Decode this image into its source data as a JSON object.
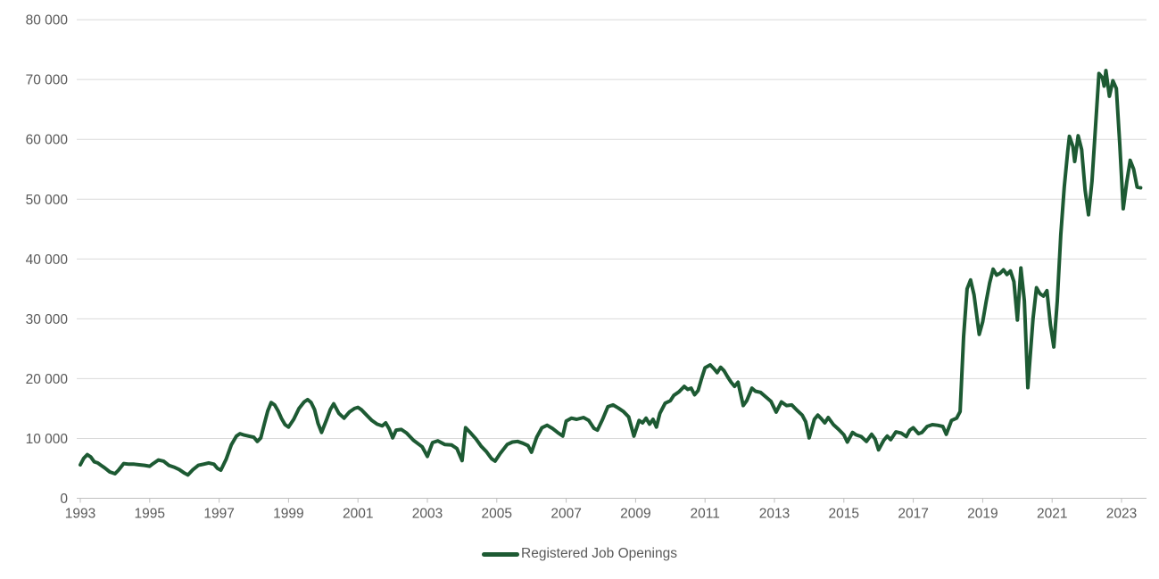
{
  "colors": {
    "line": "#1d5a33",
    "axis_text": "#595959",
    "gridline": "#d9d9d9",
    "axis_line": "#bfbfbf",
    "background": "#ffffff"
  },
  "legend": {
    "label": "Registered Job Openings"
  },
  "chart_data": {
    "type": "line",
    "title": "",
    "xlabel": "",
    "ylabel": "",
    "grid": "horizontal",
    "legend_position": "bottom-center",
    "x_axis": {
      "ticks": [
        1993,
        1995,
        1997,
        1999,
        2001,
        2003,
        2005,
        2007,
        2009,
        2011,
        2013,
        2015,
        2017,
        2019,
        2021,
        2023
      ],
      "tick_labels": [
        "1993",
        "1995",
        "1997",
        "1999",
        "2001",
        "2003",
        "2005",
        "2007",
        "2009",
        "2011",
        "2013",
        "2015",
        "2017",
        "2019",
        "2021",
        "2023"
      ],
      "range": [
        1993,
        2023.7
      ]
    },
    "y_axis": {
      "ticks": [
        0,
        10000,
        20000,
        30000,
        40000,
        50000,
        60000,
        70000,
        80000
      ],
      "tick_labels": [
        "0",
        "10 000",
        "20 000",
        "30 000",
        "40 000",
        "50 000",
        "60 000",
        "70 000",
        "80 000"
      ],
      "range": [
        0,
        80000
      ]
    },
    "series": [
      {
        "name": "Registered Job Openings",
        "color": "#1d5a33",
        "points": [
          [
            1993.0,
            5600
          ],
          [
            1993.1,
            6700
          ],
          [
            1993.2,
            7300
          ],
          [
            1993.3,
            6900
          ],
          [
            1993.4,
            6100
          ],
          [
            1993.5,
            5900
          ],
          [
            1993.6,
            5500
          ],
          [
            1993.7,
            5100
          ],
          [
            1993.85,
            4400
          ],
          [
            1994.0,
            4100
          ],
          [
            1994.1,
            4700
          ],
          [
            1994.25,
            5800
          ],
          [
            1994.4,
            5700
          ],
          [
            1994.55,
            5700
          ],
          [
            1994.7,
            5600
          ],
          [
            1994.85,
            5500
          ],
          [
            1995.0,
            5350
          ],
          [
            1995.1,
            5800
          ],
          [
            1995.25,
            6400
          ],
          [
            1995.4,
            6200
          ],
          [
            1995.55,
            5500
          ],
          [
            1995.7,
            5200
          ],
          [
            1995.85,
            4800
          ],
          [
            1996.0,
            4200
          ],
          [
            1996.1,
            3900
          ],
          [
            1996.25,
            4800
          ],
          [
            1996.4,
            5500
          ],
          [
            1996.55,
            5700
          ],
          [
            1996.7,
            5900
          ],
          [
            1996.85,
            5700
          ],
          [
            1996.95,
            5000
          ],
          [
            1997.05,
            4700
          ],
          [
            1997.2,
            6500
          ],
          [
            1997.35,
            8900
          ],
          [
            1997.5,
            10400
          ],
          [
            1997.6,
            10800
          ],
          [
            1997.7,
            10600
          ],
          [
            1997.85,
            10400
          ],
          [
            1998.0,
            10200
          ],
          [
            1998.1,
            9500
          ],
          [
            1998.2,
            10100
          ],
          [
            1998.3,
            12400
          ],
          [
            1998.4,
            14600
          ],
          [
            1998.5,
            16000
          ],
          [
            1998.6,
            15600
          ],
          [
            1998.7,
            14600
          ],
          [
            1998.8,
            13300
          ],
          [
            1998.9,
            12300
          ],
          [
            1999.0,
            11900
          ],
          [
            1999.15,
            13200
          ],
          [
            1999.3,
            15000
          ],
          [
            1999.45,
            16100
          ],
          [
            1999.55,
            16500
          ],
          [
            1999.65,
            16000
          ],
          [
            1999.75,
            14800
          ],
          [
            1999.85,
            12500
          ],
          [
            1999.95,
            11000
          ],
          [
            2000.1,
            13200
          ],
          [
            2000.2,
            14800
          ],
          [
            2000.3,
            15800
          ],
          [
            2000.45,
            14200
          ],
          [
            2000.6,
            13400
          ],
          [
            2000.75,
            14400
          ],
          [
            2000.9,
            15000
          ],
          [
            2001.0,
            15200
          ],
          [
            2001.1,
            14800
          ],
          [
            2001.25,
            13900
          ],
          [
            2001.4,
            13000
          ],
          [
            2001.55,
            12400
          ],
          [
            2001.7,
            12100
          ],
          [
            2001.8,
            12600
          ],
          [
            2001.9,
            11600
          ],
          [
            2002.0,
            10100
          ],
          [
            2002.1,
            11400
          ],
          [
            2002.25,
            11500
          ],
          [
            2002.4,
            10900
          ],
          [
            2002.6,
            9700
          ],
          [
            2002.85,
            8600
          ],
          [
            2003.0,
            7000
          ],
          [
            2003.15,
            9300
          ],
          [
            2003.3,
            9600
          ],
          [
            2003.5,
            9000
          ],
          [
            2003.7,
            8900
          ],
          [
            2003.85,
            8300
          ],
          [
            2004.0,
            6300
          ],
          [
            2004.1,
            11800
          ],
          [
            2004.25,
            10900
          ],
          [
            2004.4,
            9900
          ],
          [
            2004.55,
            8700
          ],
          [
            2004.7,
            7800
          ],
          [
            2004.85,
            6600
          ],
          [
            2004.95,
            6200
          ],
          [
            2005.1,
            7500
          ],
          [
            2005.3,
            9000
          ],
          [
            2005.45,
            9400
          ],
          [
            2005.6,
            9500
          ],
          [
            2005.75,
            9200
          ],
          [
            2005.9,
            8800
          ],
          [
            2006.0,
            7700
          ],
          [
            2006.15,
            10200
          ],
          [
            2006.3,
            11800
          ],
          [
            2006.45,
            12200
          ],
          [
            2006.6,
            11700
          ],
          [
            2006.75,
            11000
          ],
          [
            2006.9,
            10400
          ],
          [
            2007.0,
            12900
          ],
          [
            2007.15,
            13400
          ],
          [
            2007.3,
            13200
          ],
          [
            2007.5,
            13500
          ],
          [
            2007.65,
            13000
          ],
          [
            2007.8,
            11700
          ],
          [
            2007.9,
            11400
          ],
          [
            2008.05,
            13200
          ],
          [
            2008.2,
            15300
          ],
          [
            2008.35,
            15600
          ],
          [
            2008.5,
            15100
          ],
          [
            2008.65,
            14500
          ],
          [
            2008.8,
            13600
          ],
          [
            2008.95,
            10400
          ],
          [
            2009.1,
            13000
          ],
          [
            2009.2,
            12600
          ],
          [
            2009.3,
            13400
          ],
          [
            2009.4,
            12400
          ],
          [
            2009.5,
            13200
          ],
          [
            2009.6,
            11900
          ],
          [
            2009.7,
            14200
          ],
          [
            2009.85,
            15900
          ],
          [
            2010.0,
            16300
          ],
          [
            2010.1,
            17200
          ],
          [
            2010.25,
            17800
          ],
          [
            2010.4,
            18700
          ],
          [
            2010.5,
            18200
          ],
          [
            2010.6,
            18400
          ],
          [
            2010.7,
            17300
          ],
          [
            2010.8,
            18000
          ],
          [
            2010.9,
            20000
          ],
          [
            2011.0,
            21800
          ],
          [
            2011.15,
            22300
          ],
          [
            2011.25,
            21700
          ],
          [
            2011.35,
            21000
          ],
          [
            2011.45,
            21900
          ],
          [
            2011.55,
            21300
          ],
          [
            2011.65,
            20300
          ],
          [
            2011.75,
            19400
          ],
          [
            2011.85,
            18700
          ],
          [
            2011.95,
            19400
          ],
          [
            2012.1,
            15500
          ],
          [
            2012.2,
            16300
          ],
          [
            2012.35,
            18400
          ],
          [
            2012.45,
            17900
          ],
          [
            2012.6,
            17700
          ],
          [
            2012.8,
            16700
          ],
          [
            2012.9,
            16200
          ],
          [
            2013.05,
            14400
          ],
          [
            2013.2,
            16100
          ],
          [
            2013.35,
            15500
          ],
          [
            2013.5,
            15600
          ],
          [
            2013.65,
            14700
          ],
          [
            2013.8,
            13900
          ],
          [
            2013.9,
            12800
          ],
          [
            2014.0,
            10100
          ],
          [
            2014.15,
            13200
          ],
          [
            2014.25,
            13900
          ],
          [
            2014.35,
            13300
          ],
          [
            2014.45,
            12600
          ],
          [
            2014.55,
            13500
          ],
          [
            2014.7,
            12300
          ],
          [
            2014.85,
            11500
          ],
          [
            2015.0,
            10600
          ],
          [
            2015.1,
            9400
          ],
          [
            2015.25,
            11000
          ],
          [
            2015.35,
            10600
          ],
          [
            2015.5,
            10300
          ],
          [
            2015.65,
            9500
          ],
          [
            2015.8,
            10700
          ],
          [
            2015.9,
            9900
          ],
          [
            2016.0,
            8100
          ],
          [
            2016.15,
            9700
          ],
          [
            2016.25,
            10400
          ],
          [
            2016.35,
            9800
          ],
          [
            2016.5,
            11100
          ],
          [
            2016.65,
            10900
          ],
          [
            2016.8,
            10300
          ],
          [
            2016.9,
            11400
          ],
          [
            2017.0,
            11800
          ],
          [
            2017.15,
            10800
          ],
          [
            2017.25,
            11000
          ],
          [
            2017.4,
            12000
          ],
          [
            2017.55,
            12300
          ],
          [
            2017.7,
            12200
          ],
          [
            2017.85,
            12000
          ],
          [
            2017.95,
            10700
          ],
          [
            2018.1,
            13000
          ],
          [
            2018.25,
            13400
          ],
          [
            2018.35,
            14500
          ],
          [
            2018.45,
            27000
          ],
          [
            2018.55,
            35000
          ],
          [
            2018.65,
            36500
          ],
          [
            2018.75,
            34000
          ],
          [
            2018.9,
            27400
          ],
          [
            2019.0,
            29500
          ],
          [
            2019.1,
            32900
          ],
          [
            2019.2,
            36000
          ],
          [
            2019.3,
            38300
          ],
          [
            2019.4,
            37300
          ],
          [
            2019.5,
            37600
          ],
          [
            2019.6,
            38200
          ],
          [
            2019.7,
            37400
          ],
          [
            2019.8,
            38000
          ],
          [
            2019.9,
            36200
          ],
          [
            2020.0,
            29800
          ],
          [
            2020.1,
            38500
          ],
          [
            2020.2,
            33000
          ],
          [
            2020.3,
            18500
          ],
          [
            2020.45,
            30000
          ],
          [
            2020.55,
            35200
          ],
          [
            2020.65,
            34200
          ],
          [
            2020.75,
            33800
          ],
          [
            2020.85,
            34700
          ],
          [
            2020.95,
            29000
          ],
          [
            2021.05,
            25300
          ],
          [
            2021.15,
            33000
          ],
          [
            2021.25,
            44000
          ],
          [
            2021.35,
            52000
          ],
          [
            2021.45,
            58000
          ],
          [
            2021.5,
            60500
          ],
          [
            2021.6,
            58800
          ],
          [
            2021.65,
            56300
          ],
          [
            2021.75,
            60600
          ],
          [
            2021.85,
            58300
          ],
          [
            2021.95,
            51500
          ],
          [
            2022.05,
            47400
          ],
          [
            2022.15,
            53000
          ],
          [
            2022.25,
            62000
          ],
          [
            2022.35,
            71000
          ],
          [
            2022.45,
            70300
          ],
          [
            2022.5,
            68900
          ],
          [
            2022.55,
            71500
          ],
          [
            2022.65,
            67200
          ],
          [
            2022.75,
            69800
          ],
          [
            2022.85,
            68500
          ],
          [
            2022.95,
            59000
          ],
          [
            2023.05,
            48400
          ],
          [
            2023.15,
            52800
          ],
          [
            2023.25,
            56500
          ],
          [
            2023.35,
            55000
          ],
          [
            2023.45,
            52000
          ],
          [
            2023.55,
            51900
          ]
        ]
      }
    ]
  }
}
